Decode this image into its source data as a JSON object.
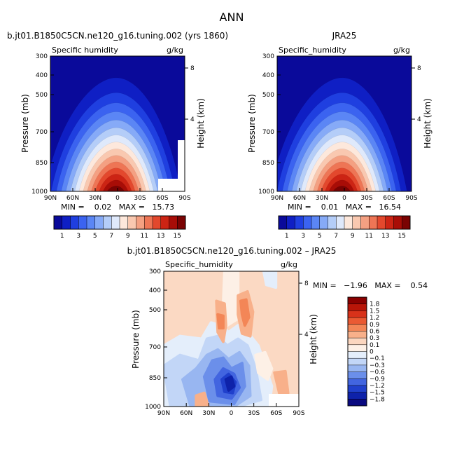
{
  "figure": {
    "title": "ANN"
  },
  "chart_data": [
    {
      "type": "heatmap",
      "title": "b.jt01.B1850C5CN.ne120_g16.tuning.002 (yrs 1860)",
      "subtitle_left": "Specific humidity",
      "subtitle_right": "g/kg",
      "xlabel": "",
      "ylabel": "Pressure (mb)",
      "ylabel_right": "Height (km)",
      "x_ticks": [
        "90N",
        "60N",
        "30N",
        "0",
        "30S",
        "60S",
        "90S"
      ],
      "y_ticks": [
        "300",
        "400",
        "500",
        "700",
        "850",
        "1000"
      ],
      "y_right_ticks": [
        "8",
        "4"
      ],
      "stats": "MIN =    0.02   MAX =   15.73",
      "max": 15.73,
      "min": 0.02,
      "colorbar": {
        "labels": [
          "1",
          "3",
          "5",
          "7",
          "9",
          "11",
          "13",
          "15"
        ],
        "colors": [
          "#0a0a9a",
          "#0f1fc4",
          "#1f3fe0",
          "#3b63f0",
          "#5b86f5",
          "#86aaf7",
          "#b4cdf8",
          "#dfe9fb",
          "#fde8dc",
          "#f9c8b0",
          "#f4a082",
          "#ee7555",
          "#e3482d",
          "#cc2414",
          "#a80d07",
          "#7a0303"
        ]
      }
    },
    {
      "type": "heatmap",
      "title": "JRA25",
      "subtitle_left": "Specific_humidity",
      "subtitle_right": "g/kg",
      "xlabel": "",
      "ylabel": "Pressure (mb)",
      "ylabel_right": "Height (km)",
      "x_ticks": [
        "90N",
        "60N",
        "30N",
        "0",
        "30S",
        "60S",
        "90S"
      ],
      "y_ticks": [
        "300",
        "400",
        "500",
        "700",
        "850",
        "1000"
      ],
      "y_right_ticks": [
        "8",
        "4"
      ],
      "stats": "MIN =    0.01   MAX =   16.54",
      "max": 16.54,
      "min": 0.01,
      "colorbar": {
        "labels": [
          "1",
          "3",
          "5",
          "7",
          "9",
          "11",
          "13",
          "15"
        ],
        "colors": [
          "#0a0a9a",
          "#0f1fc4",
          "#1f3fe0",
          "#3b63f0",
          "#5b86f5",
          "#86aaf7",
          "#b4cdf8",
          "#dfe9fb",
          "#fde8dc",
          "#f9c8b0",
          "#f4a082",
          "#ee7555",
          "#e3482d",
          "#cc2414",
          "#a80d07",
          "#7a0303"
        ]
      }
    },
    {
      "type": "heatmap",
      "title": "b.jt01.B1850C5CN.ne120_g16.tuning.002 – JRA25",
      "subtitle_left": "Specific_humidity",
      "subtitle_right": "g/kg",
      "xlabel": "",
      "ylabel": "Pressure (mb)",
      "ylabel_right": "Height (km)",
      "x_ticks": [
        "90N",
        "60N",
        "30N",
        "0",
        "30S",
        "60S",
        "90S"
      ],
      "y_ticks": [
        "300",
        "400",
        "500",
        "700",
        "850",
        "1000"
      ],
      "y_right_ticks": [
        "8",
        "4"
      ],
      "stats": "MIN =   −1.96   MAX =    0.54",
      "max": 0.54,
      "min": -1.96,
      "colorbar": {
        "labels": [
          "1.8",
          "1.5",
          "1.2",
          "0.9",
          "0.6",
          "0.3",
          "0.1",
          "0",
          "−0.1",
          "−0.3",
          "−0.6",
          "−0.9",
          "−1.2",
          "−1.5",
          "−1.8"
        ],
        "colors": [
          "#8a0000",
          "#b81508",
          "#d8321a",
          "#ea5a33",
          "#f38657",
          "#f8b08a",
          "#fbd6bf",
          "#fdf0e6",
          "#e4eefb",
          "#c2d6f7",
          "#98b6f1",
          "#6b8fea",
          "#4265e0",
          "#2040cc",
          "#0e22aa",
          "#0a0a80"
        ]
      }
    }
  ]
}
